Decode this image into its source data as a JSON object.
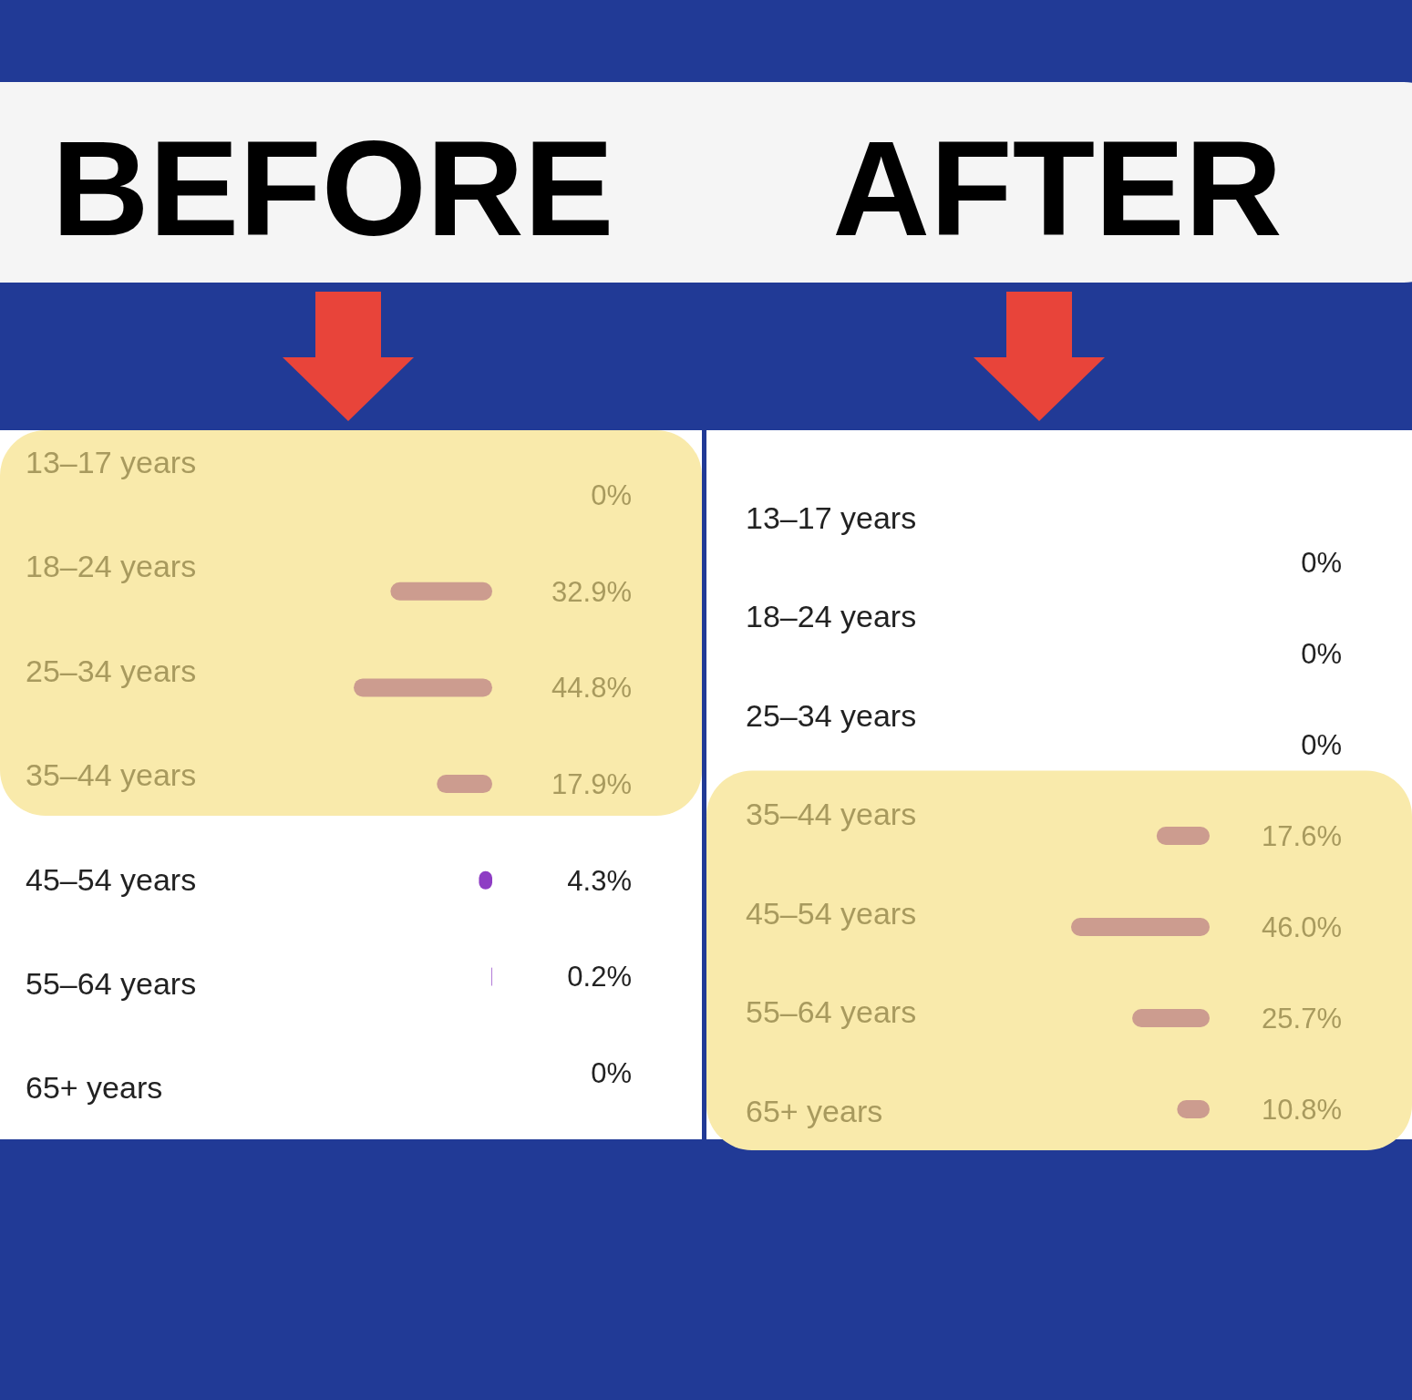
{
  "chart_data": [
    {
      "type": "bar",
      "orientation": "horizontal",
      "title": "BEFORE",
      "categories": [
        "13–17 years",
        "18–24 years",
        "25–34 years",
        "35–44 years",
        "45–54 years",
        "55–64 years",
        "65+ years"
      ],
      "values": [
        0,
        32.9,
        44.8,
        17.9,
        4.3,
        0.2,
        0
      ],
      "colors": [
        "#cc9c8f",
        "#cc9c8f",
        "#cc9c8f",
        "#cc9c8f",
        "#8e3dc4",
        "#8e3dc4",
        "#cc9c8f"
      ],
      "value_labels": [
        "0%",
        "32.9%",
        "44.8%",
        "17.9%",
        "4.3%",
        "0.2%",
        "0%"
      ],
      "bands": [
        {
          "axis": "y",
          "from": "13–17 years",
          "to": "35–44 years",
          "color": "#f9eaab"
        }
      ]
    },
    {
      "type": "bar",
      "orientation": "horizontal",
      "title": "AFTER",
      "categories": [
        "13–17 years",
        "18–24 years",
        "25–34 years",
        "35–44 years",
        "45–54 years",
        "55–64 years",
        "65+ years"
      ],
      "values": [
        0,
        0,
        0,
        17.6,
        46.0,
        25.7,
        10.8
      ],
      "colors": [
        "#cc9c8f",
        "#cc9c8f",
        "#cc9c8f",
        "#cc9c8f",
        "#cc9c8f",
        "#cc9c8f",
        "#cc9c8f"
      ],
      "value_labels": [
        "0%",
        "0%",
        "0%",
        "17.6%",
        "46.0%",
        "25.7%",
        "10.8%"
      ],
      "bands": [
        {
          "axis": "y",
          "from": "35–44 years",
          "to": "65+ years",
          "color": "#f9eaab"
        }
      ]
    }
  ]
}
